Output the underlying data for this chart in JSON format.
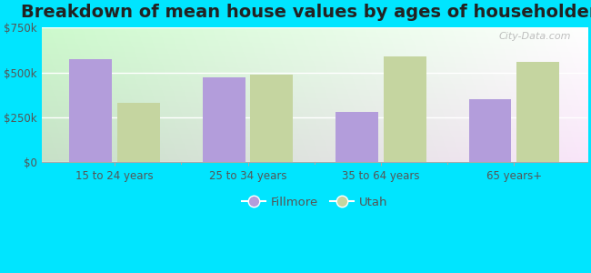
{
  "title": "Breakdown of mean house values by ages of householders",
  "categories": [
    "15 to 24 years",
    "25 to 34 years",
    "35 to 64 years",
    "65 years+"
  ],
  "fillmore_values": [
    575000,
    475000,
    280000,
    350000
  ],
  "utah_values": [
    330000,
    490000,
    590000,
    560000
  ],
  "fillmore_color": "#b39ddb",
  "utah_color": "#c5d5a0",
  "background_top_left": "#d4edda",
  "background_top_right": "#f0f8f0",
  "outer_background": "#00e5ff",
  "ylim": [
    0,
    750000
  ],
  "yticks": [
    0,
    250000,
    500000,
    750000
  ],
  "ytick_labels": [
    "$0",
    "$250k",
    "$500k",
    "$750k"
  ],
  "bar_width": 0.32,
  "legend_labels": [
    "Fillmore",
    "Utah"
  ],
  "watermark": "City-Data.com",
  "title_fontsize": 14,
  "tick_fontsize": 8.5,
  "legend_fontsize": 9.5
}
